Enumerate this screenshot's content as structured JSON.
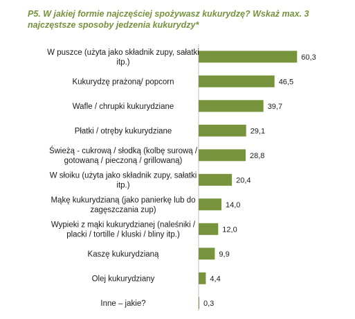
{
  "chart_data": {
    "type": "bar",
    "orientation": "horizontal",
    "title": "P5. W jakiej formie najczęściej spożywasz kukurydzę? Wskaż max. 3 najczęstsze sposoby jedzenia kukurydzy*",
    "categories": [
      [
        "W puszce (użyta jako składnik zupy, sałatki",
        "itp.)"
      ],
      [
        "Kukurydzę prażoną/ popcorn"
      ],
      [
        "Wafle / chrupki kukurydziane"
      ],
      [
        "Płatki / otręby kukurydziane"
      ],
      [
        "Świeżą - cukrową / słodką (kolbę surową /",
        "gotowaną / pieczoną / grillowaną)"
      ],
      [
        "W słoiku (użyta jako składnik zupy, sałatki",
        "itp.)"
      ],
      [
        "Mąkę kukurydzianą (jako panierkę lub do",
        "zagęszczania zup)"
      ],
      [
        "Wypieki z mąki kukurydzianej (naleśniki /",
        "placki / tortille / kluski / bliny itp.)"
      ],
      [
        "Kaszę kukurydzianą"
      ],
      [
        "Olej kukurydziany"
      ],
      [
        "Inne – jakie?"
      ]
    ],
    "values": [
      60.3,
      46.5,
      39.7,
      29.1,
      28.8,
      20.4,
      14.0,
      12.0,
      9.9,
      4.4,
      0.3
    ],
    "value_labels": [
      "60,3",
      "46,5",
      "39,7",
      "29,1",
      "28,8",
      "20,4",
      "14,0",
      "12,0",
      "9,9",
      "4,4",
      "0,3"
    ],
    "xlim": [
      0,
      70
    ],
    "grid": false,
    "legend": "none",
    "bar_color": "#77933c",
    "title_color": "#76923c"
  }
}
